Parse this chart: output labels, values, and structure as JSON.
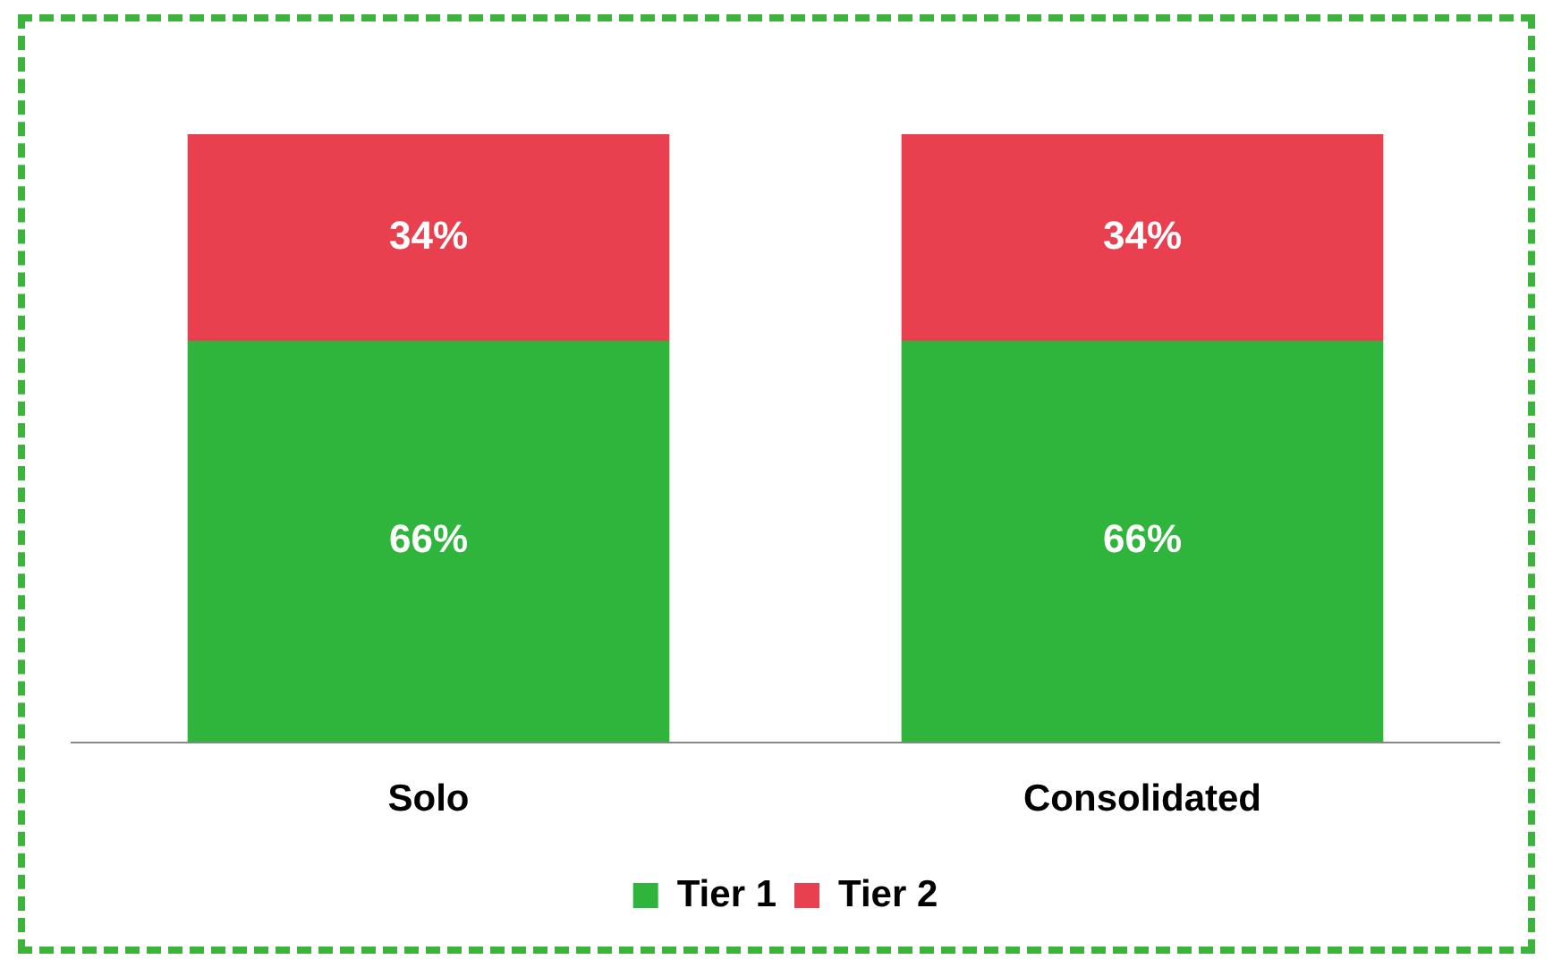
{
  "chart_data": {
    "type": "bar",
    "stacked": true,
    "categories": [
      "Solo",
      "Consolidated"
    ],
    "series": [
      {
        "name": "Tier 1",
        "color": "#2fb53c",
        "values": [
          66,
          66
        ],
        "value_labels": [
          "66%",
          "66%"
        ]
      },
      {
        "name": "Tier 2",
        "color": "#e8404f",
        "values": [
          34,
          34
        ],
        "value_labels": [
          "34%",
          "34%"
        ]
      }
    ],
    "legend": "bottom",
    "grid": false,
    "tick_labels": "x"
  }
}
